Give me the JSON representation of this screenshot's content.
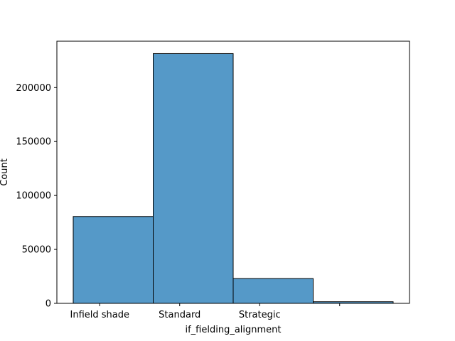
{
  "chart_data": {
    "type": "bar",
    "categories": [
      "Infield shade",
      "Standard",
      "Strategic",
      ""
    ],
    "values": [
      80500,
      231500,
      23000,
      1500
    ],
    "title": "",
    "xlabel": "if_fielding_alignment",
    "ylabel": "Count",
    "ylim": [
      0,
      243000
    ],
    "yticks": [
      0,
      50000,
      100000,
      150000,
      200000
    ],
    "ytick_labels": [
      "0",
      "50000",
      "100000",
      "150000",
      "200000"
    ],
    "grid": false,
    "legend": "none",
    "colors": {
      "bar_fill": "#5599c8",
      "bar_edge": "#000000",
      "axis": "#000000"
    }
  }
}
